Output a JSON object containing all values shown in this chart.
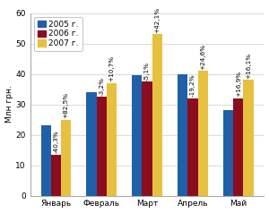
{
  "months": [
    "Январь",
    "Февраль",
    "Март",
    "Апрель",
    "Май"
  ],
  "values_2005": [
    23,
    34,
    39.5,
    40,
    28
  ],
  "values_2006": [
    13.5,
    32.5,
    37.5,
    32,
    32
  ],
  "values_2007": [
    25,
    37,
    53,
    41,
    38
  ],
  "labels_2006": [
    "-40,3%",
    "-3,2%",
    "-5,1%",
    "-19,2%",
    "+16,9%"
  ],
  "labels_2007": [
    "+82,5%",
    "+10,7%",
    "+42,1%",
    "+24,6%",
    "+16,1%"
  ],
  "color_2005": "#2060a8",
  "color_2006": "#8c0c20",
  "color_2007": "#e8c040",
  "ylabel": "Млн грн.",
  "ylim": [
    0,
    60
  ],
  "yticks": [
    0,
    10,
    20,
    30,
    40,
    50,
    60
  ],
  "legend_2005": "2005 г.",
  "legend_2006": "2006 г.",
  "legend_2007": "2007 г.",
  "bar_width": 0.22,
  "label_fontsize": 5.2,
  "axis_fontsize": 6.5,
  "legend_fontsize": 6.5
}
